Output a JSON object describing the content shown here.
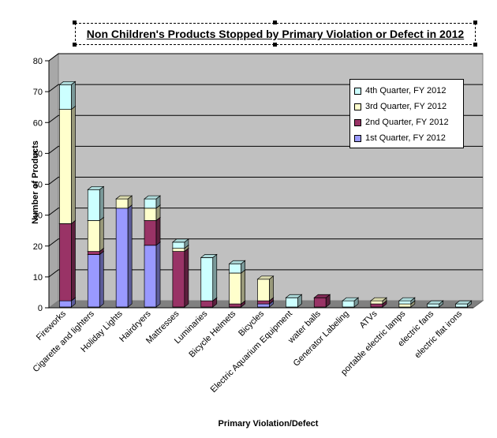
{
  "chart_data": {
    "type": "bar",
    "stacked": true,
    "title": "Non Children's Products Stopped by Primary Violation or Defect in 2012",
    "xlabel": "Primary Violation/Defect",
    "ylabel": "Number of Products",
    "ylim": [
      0,
      80
    ],
    "yticks": [
      0,
      10,
      20,
      30,
      40,
      50,
      60,
      70,
      80
    ],
    "grid": true,
    "legend_position": "top-right",
    "categories": [
      "Fireworks",
      "Cigarette and lighters",
      "Holiday Lights",
      "Hairdryers",
      "Mattresses",
      "Luminaries",
      "Bicycle Helmets",
      "Bicycles",
      "Electric Aquarium Equipment",
      "water balls",
      "Generator Labeling",
      "ATVs",
      "portable electric lamps",
      "electric fans",
      "electric flat irons"
    ],
    "series": [
      {
        "name": "1st Quarter, FY 2012",
        "color": "#9999ff",
        "values": [
          2,
          17,
          32,
          20,
          0,
          0,
          0,
          1,
          0,
          0,
          0,
          0,
          0,
          0,
          0
        ]
      },
      {
        "name": "2nd Quarter, FY 2012",
        "color": "#993366",
        "values": [
          25,
          1,
          0,
          8,
          18,
          2,
          1,
          1,
          0,
          3,
          0,
          1,
          0,
          0,
          0
        ]
      },
      {
        "name": "3rd Quarter, FY 2012",
        "color": "#ffffcc",
        "values": [
          37,
          10,
          3,
          4,
          1,
          0,
          10,
          7,
          0,
          0,
          0,
          1,
          1,
          0,
          0
        ]
      },
      {
        "name": "4th Quarter, FY 2012",
        "color": "#ccffff",
        "values": [
          8,
          10,
          0,
          3,
          2,
          14,
          3,
          0,
          3,
          0,
          2,
          0,
          1,
          1,
          1
        ]
      }
    ]
  }
}
